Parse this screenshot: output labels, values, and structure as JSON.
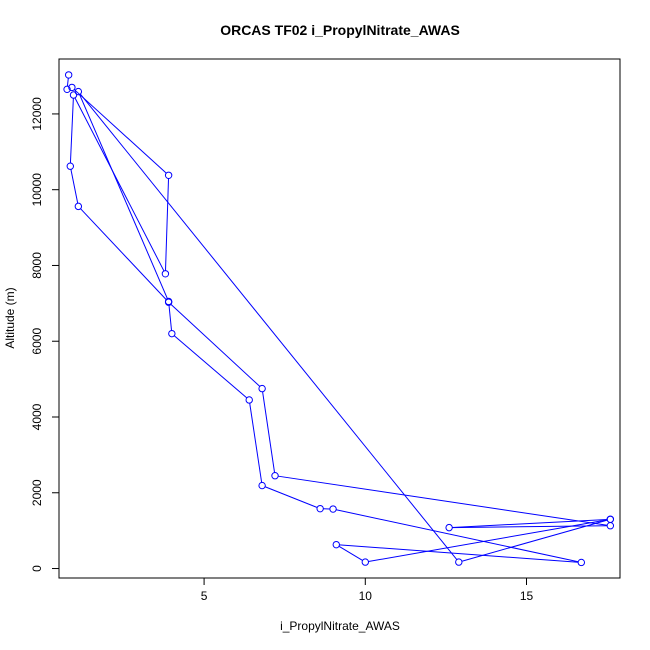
{
  "chart_data": {
    "type": "line",
    "title": "ORCAS TF02 i_PropylNitrate_AWAS",
    "xlabel": "i_PropylNitrate_AWAS",
    "ylabel": "Altitude (m)",
    "xlim": [
      0.5,
      17.9
    ],
    "ylim": [
      -250,
      13450
    ],
    "x_ticks": [
      5,
      10,
      15
    ],
    "y_ticks": [
      0,
      2000,
      4000,
      6000,
      8000,
      10000,
      12000
    ],
    "grid": false,
    "series": [
      {
        "color": "#0000ff",
        "marker": "open-circle",
        "points": [
          {
            "x": 0.8,
            "y": 13030
          },
          {
            "x": 0.75,
            "y": 12650
          },
          {
            "x": 0.9,
            "y": 12700
          },
          {
            "x": 3.9,
            "y": 10380
          },
          {
            "x": 3.8,
            "y": 7780
          },
          {
            "x": 0.95,
            "y": 12500
          },
          {
            "x": 0.85,
            "y": 10620
          },
          {
            "x": 1.1,
            "y": 9560
          },
          {
            "x": 3.9,
            "y": 7030
          },
          {
            "x": 6.8,
            "y": 4750
          },
          {
            "x": 7.2,
            "y": 2450
          },
          {
            "x": 17.6,
            "y": 1130
          },
          {
            "x": 12.6,
            "y": 1080
          },
          {
            "x": 17.6,
            "y": 1300
          },
          {
            "x": 10.0,
            "y": 170
          },
          {
            "x": 9.1,
            "y": 630
          },
          {
            "x": 16.7,
            "y": 160
          },
          {
            "x": 9.0,
            "y": 1570
          },
          {
            "x": 8.6,
            "y": 1580
          },
          {
            "x": 6.8,
            "y": 2190
          },
          {
            "x": 6.4,
            "y": 4450
          },
          {
            "x": 4.0,
            "y": 6200
          },
          {
            "x": 3.9,
            "y": 7050
          },
          {
            "x": 1.1,
            "y": 12590
          },
          {
            "x": 12.9,
            "y": 170
          },
          {
            "x": 17.6,
            "y": 1300
          }
        ]
      }
    ]
  }
}
